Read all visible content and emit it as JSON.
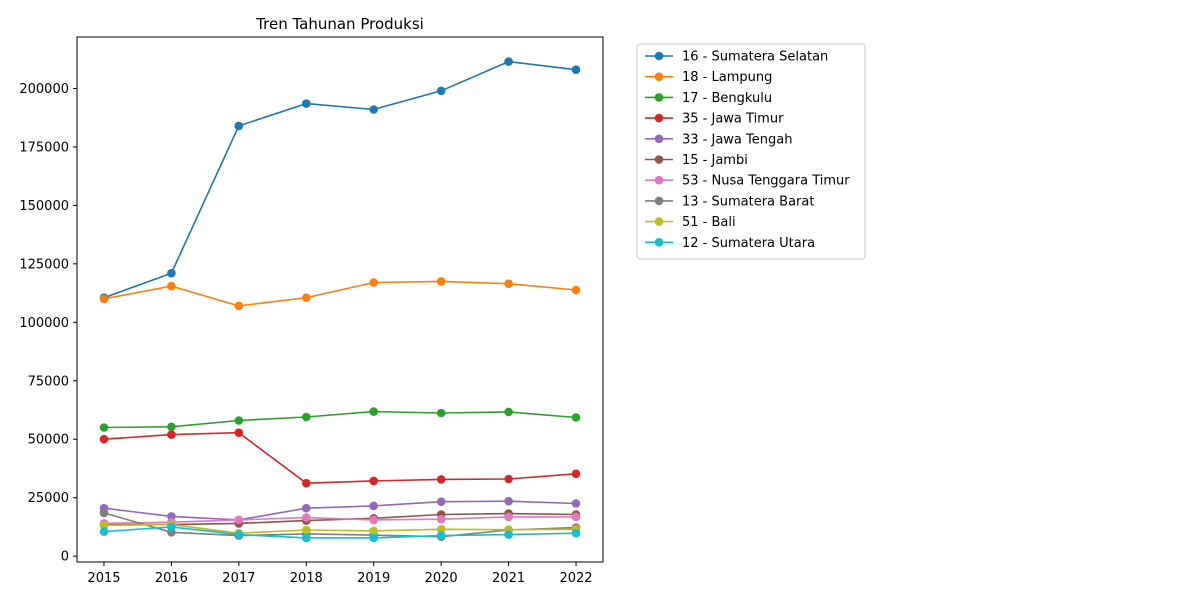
{
  "chart_data": {
    "type": "line",
    "title": "Tren Tahunan Produksi",
    "xlabel": "",
    "ylabel": "",
    "x": [
      2015,
      2016,
      2017,
      2018,
      2019,
      2020,
      2021,
      2022
    ],
    "x_ticks": [
      "2015",
      "2016",
      "2017",
      "2018",
      "2019",
      "2020",
      "2021",
      "2022"
    ],
    "ylim": [
      -2500,
      222000
    ],
    "y_ticks": [
      0,
      25000,
      50000,
      75000,
      100000,
      125000,
      150000,
      175000,
      200000
    ],
    "y_tick_labels": [
      "0",
      "25000",
      "50000",
      "75000",
      "100000",
      "125000",
      "150000",
      "175000",
      "200000"
    ],
    "grid": false,
    "legend_position": "outside-right",
    "series": [
      {
        "name": "16 - Sumatera Selatan",
        "color": "#1f77b4",
        "values": [
          110500,
          121000,
          184000,
          193500,
          191000,
          199000,
          211500,
          208000
        ]
      },
      {
        "name": "18 - Lampung",
        "color": "#ff7f0e",
        "values": [
          110000,
          115500,
          107000,
          110500,
          117000,
          117500,
          116500,
          113800
        ]
      },
      {
        "name": "17 - Bengkulu",
        "color": "#2ca02c",
        "values": [
          55000,
          55300,
          58000,
          59500,
          61800,
          61200,
          61700,
          59300
        ]
      },
      {
        "name": "35 - Jawa Timur",
        "color": "#d62728",
        "values": [
          50000,
          52000,
          52800,
          31200,
          32200,
          32800,
          33000,
          35200
        ]
      },
      {
        "name": "33 - Jawa Tengah",
        "color": "#9467bd",
        "values": [
          20500,
          17000,
          15500,
          20500,
          21500,
          23300,
          23500,
          22500
        ]
      },
      {
        "name": "15 - Jambi",
        "color": "#8c564b",
        "values": [
          13500,
          13500,
          14000,
          15200,
          16200,
          17800,
          18200,
          17800
        ]
      },
      {
        "name": "53 - Nusa Tenggara Timur",
        "color": "#e377c2",
        "values": [
          14000,
          14500,
          15500,
          16500,
          15500,
          15800,
          16800,
          16800
        ]
      },
      {
        "name": "13 - Sumatera Barat",
        "color": "#7f7f7f",
        "values": [
          18500,
          10200,
          8800,
          9500,
          9000,
          8300,
          11200,
          12200
        ]
      },
      {
        "name": "51 - Bali",
        "color": "#bcbd22",
        "values": [
          13200,
          13500,
          9800,
          11200,
          10800,
          11500,
          11300,
          11500
        ]
      },
      {
        "name": "12 - Sumatera Utara",
        "color": "#17becf",
        "values": [
          10500,
          12500,
          9200,
          7800,
          7800,
          8800,
          9200,
          9800
        ]
      }
    ]
  }
}
